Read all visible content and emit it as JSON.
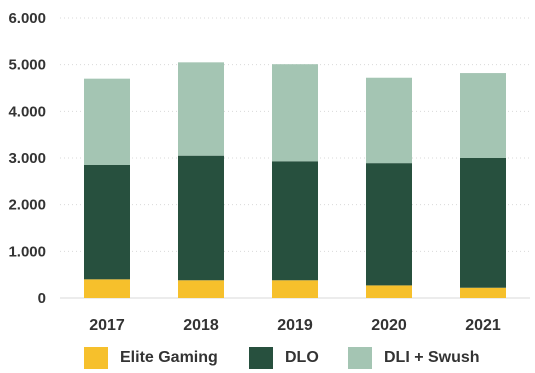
{
  "chart_data": {
    "type": "bar",
    "stacked": true,
    "categories": [
      "2017",
      "2018",
      "2019",
      "2020",
      "2021"
    ],
    "series": [
      {
        "name": "Elite Gaming",
        "values": [
          400,
          380,
          380,
          270,
          220
        ],
        "color": "#f6c02c"
      },
      {
        "name": "DLO",
        "values": [
          2450,
          2670,
          2550,
          2620,
          2780
        ],
        "color": "#27503e"
      },
      {
        "name": "DLI + Swush",
        "values": [
          1850,
          2000,
          2080,
          1830,
          1820
        ],
        "color": "#a4c5b3"
      }
    ],
    "ylim": [
      0,
      6000
    ],
    "yticks": [
      0,
      1000,
      2000,
      3000,
      4000,
      5000,
      6000
    ],
    "ytick_labels": [
      "0",
      "1.000",
      "2.000",
      "3.000",
      "4.000",
      "5.000",
      "6.000"
    ],
    "grid": true,
    "legend_position": "bottom",
    "title": "",
    "xlabel": "",
    "ylabel": ""
  },
  "legend": {
    "items": [
      {
        "label": "Elite Gaming",
        "color": "#f6c02c"
      },
      {
        "label": "DLO",
        "color": "#27503e"
      },
      {
        "label": "DLI + Swush",
        "color": "#a4c5b3"
      }
    ]
  }
}
